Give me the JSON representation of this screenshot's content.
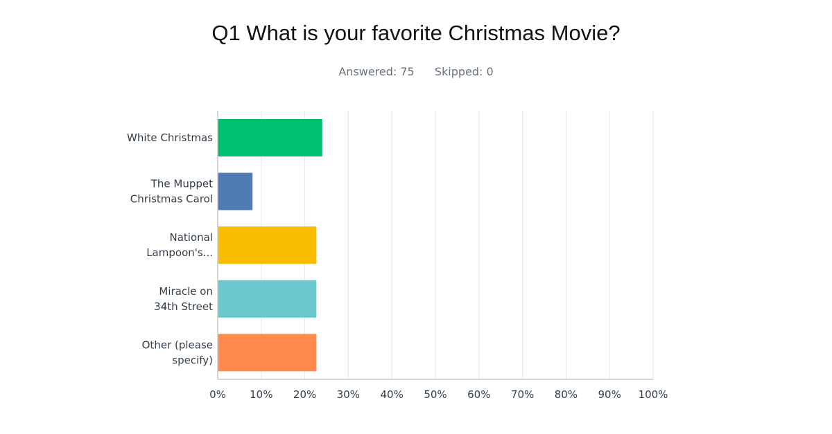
{
  "header": {
    "title": "Q1 What is your favorite Christmas Movie?",
    "answered_label": "Answered: 75",
    "skipped_label": "Skipped: 0"
  },
  "chart_data": {
    "type": "bar",
    "orientation": "horizontal",
    "categories": [
      [
        "White Christmas"
      ],
      [
        "The Muppet",
        "Christmas Carol"
      ],
      [
        "National",
        "Lampoon's..."
      ],
      [
        "Miracle on",
        "34th Street"
      ],
      [
        "Other (please",
        "specify)"
      ]
    ],
    "values": [
      24,
      8,
      22.67,
      22.67,
      22.67
    ],
    "colors": [
      "#00bf6f",
      "#507cb6",
      "#f9be00",
      "#6bc8cd",
      "#ff8b4f"
    ],
    "xlim": [
      0,
      100
    ],
    "xticks": [
      0,
      10,
      20,
      30,
      40,
      50,
      60,
      70,
      80,
      90,
      100
    ],
    "xtick_labels": [
      "0%",
      "10%",
      "20%",
      "30%",
      "40%",
      "50%",
      "60%",
      "70%",
      "80%",
      "90%",
      "100%"
    ],
    "grid": true,
    "legend": "none"
  }
}
